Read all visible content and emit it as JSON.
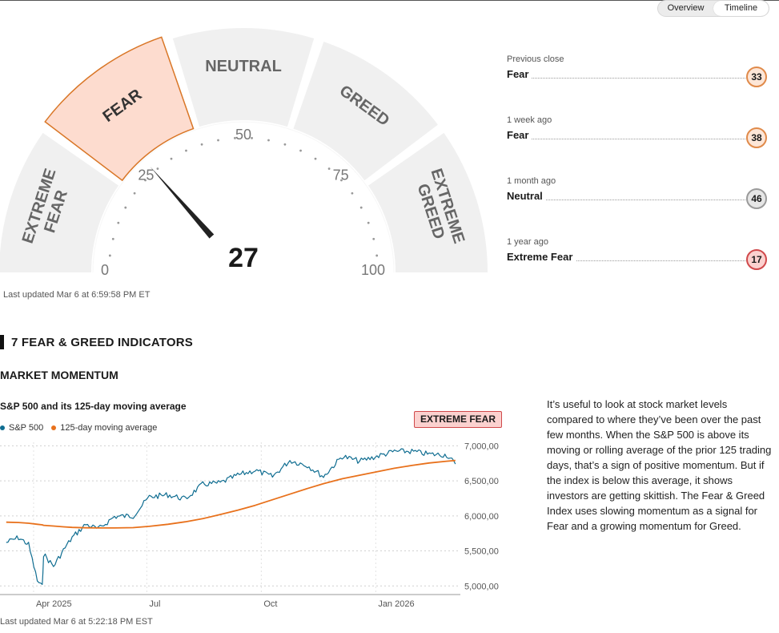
{
  "view_toggle": {
    "options": [
      "Overview",
      "Timeline"
    ],
    "active": "Timeline"
  },
  "gauge": {
    "value": "27",
    "score": 27,
    "active_zone": "FEAR",
    "zones": [
      "EXTREME\nFEAR",
      "FEAR",
      "NEUTRAL",
      "GREED",
      "EXTREME\nGREED"
    ],
    "scale_labels": [
      "0",
      "25",
      "50",
      "75",
      "100"
    ],
    "colors": {
      "zone_bg": "#f0f0f0",
      "active_fill": "#fddccf",
      "active_stroke": "#d97626",
      "needle": "#222222",
      "text": "#666666"
    }
  },
  "history": [
    {
      "when": "Previous close",
      "label": "Fear",
      "score": "33",
      "rating": "fear"
    },
    {
      "when": "1 week ago",
      "label": "Fear",
      "score": "38",
      "rating": "fear"
    },
    {
      "when": "1 month ago",
      "label": "Neutral",
      "score": "46",
      "rating": "neutral"
    },
    {
      "when": "1 year ago",
      "label": "Extreme Fear",
      "score": "17",
      "rating": "extreme-fear"
    }
  ],
  "gauge_updated": "Last updated Mar 6 at 6:59:58 PM ET",
  "indicators_title": "7 FEAR & GREED INDICATORS",
  "momentum": {
    "title": "MARKET MOMENTUM",
    "chart_title": "S&P 500 and its 125-day moving average",
    "rating": "EXTREME FEAR",
    "legend": [
      {
        "label": "S&P 500",
        "color": "#0f6d91"
      },
      {
        "label": "125-day moving average",
        "color": "#e8711c"
      }
    ],
    "updated": "Last updated Mar 6 at 5:22:18 PM EST",
    "description": "It’s useful to look at stock market levels compared to where they’ve been over the past few months. When the S&P 500 is above its moving or rolling average of the prior 125 trading days, that’s a sign of positive momentum. But if the index is below this average, it shows investors are getting skittish. The Fear & Greed Index uses slowing momentum as a signal for Fear and a growing momentum for Greed."
  },
  "chart_data": {
    "type": "line",
    "title": "S&P 500 and its 125-day moving average",
    "xlabel": "",
    "ylabel": "",
    "x_ticks": [
      "Apr 2025",
      "Jul",
      "Oct",
      "Jan 2026"
    ],
    "y_ticks": [
      "7,000,00",
      "6,500,00",
      "6,000,00",
      "5,500,00",
      "5,000,00"
    ],
    "ylim": [
      4900,
      7050
    ],
    "grid": true,
    "legend_position": "top-left",
    "x": [
      "2025-03-10",
      "2025-03-20",
      "2025-03-28",
      "2025-04-04",
      "2025-04-08",
      "2025-04-09",
      "2025-04-17",
      "2025-04-25",
      "2025-05-02",
      "2025-05-13",
      "2025-05-23",
      "2025-06-05",
      "2025-06-20",
      "2025-07-03",
      "2025-07-18",
      "2025-08-01",
      "2025-08-15",
      "2025-08-29",
      "2025-09-12",
      "2025-09-26",
      "2025-10-10",
      "2025-10-24",
      "2025-11-07",
      "2025-11-20",
      "2025-12-05",
      "2025-12-19",
      "2026-01-02",
      "2026-01-16",
      "2026-01-30",
      "2026-02-13",
      "2026-02-27",
      "2026-03-06"
    ],
    "series": [
      {
        "name": "S&P 500",
        "color": "#0f6d91",
        "values": [
          5620,
          5690,
          5590,
          5075,
          4985,
          5455,
          5280,
          5510,
          5690,
          5880,
          5810,
          5990,
          6000,
          6270,
          6300,
          6240,
          6450,
          6470,
          6580,
          6650,
          6560,
          6790,
          6720,
          6560,
          6850,
          6780,
          6850,
          6920,
          6920,
          6880,
          6870,
          6740
        ]
      },
      {
        "name": "125-day moving average",
        "color": "#e8711c",
        "values": [
          5910,
          5905,
          5895,
          5880,
          5872,
          5865,
          5855,
          5843,
          5835,
          5830,
          5828,
          5828,
          5832,
          5850,
          5880,
          5915,
          5960,
          6020,
          6080,
          6150,
          6230,
          6310,
          6390,
          6460,
          6530,
          6580,
          6630,
          6680,
          6720,
          6755,
          6780,
          6790
        ]
      }
    ]
  }
}
